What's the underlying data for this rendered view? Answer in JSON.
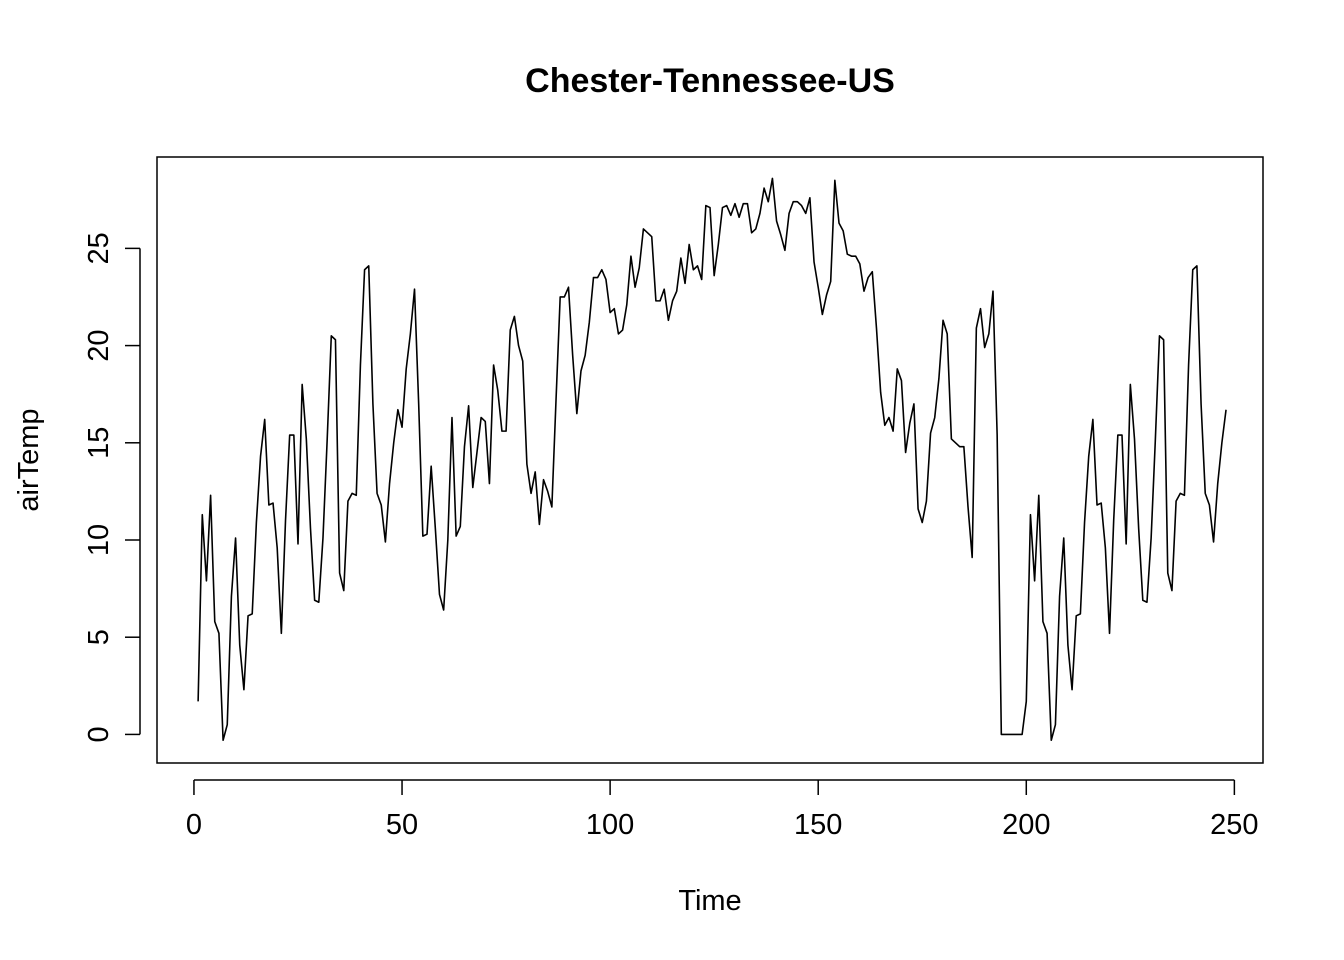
{
  "chart_data": {
    "type": "line",
    "title": "Chester-Tennessee-US",
    "xlabel": "Time",
    "ylabel": "airTemp",
    "xlim": [
      -8.88,
      256.88
    ],
    "ylim": [
      -1.47,
      29.7
    ],
    "x_ticks": [
      0,
      50,
      100,
      150,
      200,
      250
    ],
    "x_tick_labels": [
      "0",
      "50",
      "100",
      "150",
      "200",
      "250"
    ],
    "y_ticks": [
      0,
      5,
      10,
      15,
      20,
      25
    ],
    "y_tick_labels": [
      "0",
      "5",
      "10",
      "15",
      "20",
      "25"
    ],
    "grid": false,
    "legend": "none",
    "line_color": "#000000",
    "series": [
      {
        "values": [
          1.7,
          11.3,
          7.9,
          12.3,
          5.8,
          5.2,
          -0.3,
          0.5,
          7.1,
          10.1,
          4.6,
          2.3,
          6.1,
          6.2,
          10.9,
          14.3,
          16.2,
          11.8,
          11.9,
          9.6,
          5.2,
          11.0,
          15.4,
          15.4,
          9.8,
          18.0,
          15.2,
          10.6,
          6.9,
          6.8,
          10.1,
          15.1,
          20.5,
          20.3,
          8.3,
          7.4,
          12.0,
          12.4,
          12.3,
          19.0,
          23.9,
          24.1,
          17.0,
          12.4,
          11.8,
          9.9,
          12.9,
          15.0,
          16.7,
          15.8,
          18.8,
          20.6,
          22.9,
          17.0,
          10.2,
          10.3,
          13.8,
          10.6,
          7.2,
          6.4,
          10.0,
          16.3,
          10.2,
          10.7,
          14.8,
          16.9,
          12.7,
          14.5,
          16.3,
          16.1,
          12.9,
          19.0,
          17.7,
          15.6,
          15.6,
          20.8,
          21.5,
          20.0,
          19.2,
          13.9,
          12.4,
          13.5,
          10.8,
          13.1,
          12.5,
          11.7,
          17.2,
          22.5,
          22.5,
          23.0,
          19.5,
          16.5,
          18.7,
          19.5,
          21.2,
          23.5,
          23.5,
          23.9,
          23.4,
          21.7,
          21.9,
          20.6,
          20.8,
          22.1,
          24.6,
          23.0,
          24.0,
          26.0,
          25.8,
          25.6,
          22.3,
          22.3,
          22.9,
          21.3,
          22.3,
          22.8,
          24.5,
          23.2,
          25.2,
          23.9,
          24.1,
          23.4,
          27.2,
          27.1,
          23.6,
          25.2,
          27.1,
          27.2,
          26.7,
          27.3,
          26.6,
          27.3,
          27.3,
          25.8,
          26.0,
          26.8,
          28.1,
          27.4,
          28.6,
          26.4,
          25.7,
          24.9,
          26.8,
          27.4,
          27.4,
          27.2,
          26.8,
          27.6,
          24.3,
          23.0,
          21.6,
          22.6,
          23.3,
          28.5,
          26.3,
          25.9,
          24.7,
          24.6,
          24.6,
          24.2,
          22.8,
          23.5,
          23.8,
          20.9,
          17.6,
          15.9,
          16.3,
          15.6,
          18.8,
          18.2,
          14.5,
          16.0,
          17.0,
          11.6,
          10.9,
          12.0,
          15.5,
          16.3,
          18.3,
          21.3,
          20.6,
          15.2,
          15.0,
          14.8,
          14.8,
          11.7,
          9.1,
          20.9,
          21.9,
          19.9,
          20.6,
          22.8,
          15.4,
          0.0,
          0.0,
          0.0,
          0.0,
          0.0,
          0.0,
          1.7,
          11.3,
          7.9,
          12.3,
          5.8,
          5.2,
          -0.3,
          0.5,
          7.1,
          10.1,
          4.6,
          2.3,
          6.1,
          6.2,
          10.9,
          14.3,
          16.2,
          11.8,
          11.9,
          9.6,
          5.2,
          11.0,
          15.4,
          15.4,
          9.8,
          18.0,
          15.2,
          10.6,
          6.9,
          6.8,
          10.1,
          15.1,
          20.5,
          20.3,
          8.3,
          7.4,
          12.0,
          12.4,
          12.3,
          19.0,
          23.9,
          24.1,
          17.0,
          12.4,
          11.8,
          9.9,
          12.9,
          15.0,
          16.7
        ]
      }
    ]
  }
}
